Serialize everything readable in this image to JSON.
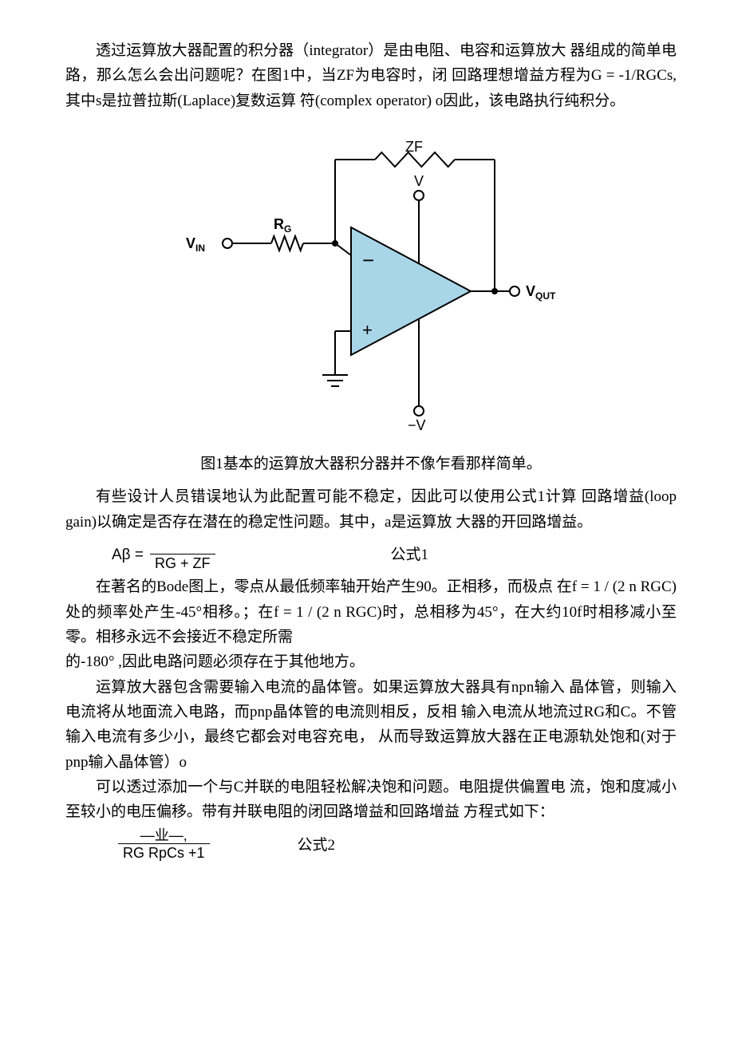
{
  "paragraphs": {
    "p1": "透过运算放大器配置的积分器（integrator）是由电阻、电容和运算放大  器组成的简单电路，那么怎么会出问题呢？在图1中，当ZF为电容时，闭  回路理想增益方程为G = -1/RGCs,其中s是拉普拉斯(Laplace)复数运算  符(complex operator) o因此，该电路执行纯积分。",
    "caption1": "图1基本的运算放大器积分器并不像乍看那样简单。",
    "p2": "有些设计人员错误地认为此配置可能不稳定，因此可以使用公式1计算  回路增益(loop gain)以确定是否存在潜在的稳定性问题。其中，a是运算放  大器的开回路增益。",
    "p3": "在著名的Bode图上，零点从最低频率轴开始产生90。正相移，而极点  在f = 1 / (2 n RGC)处的频率处产生-45°相移。；在f = 1 / (2 n RGC)时，总相移为45°，在大约10f时相移减小至零。相移永远不会接近不稳定所需",
    "p3b": "的-180° ,因此电路问题必须存在于其他地方。",
    "p4": "运算放大器包含需要输入电流的晶体管。如果运算放大器具有npn输入  晶体管，则输入电流将从地面流入电路，而pnp晶体管的电流则相反，反相  输入电流从地流过RG和C。不管输入电流有多少小，最终它都会对电容充电，  从而导致运算放大器在正电源轨处饱和(对于pnp输入晶体管）o",
    "p5": "可以透过添加一个与C并联的电阻轻松解决饱和问题。电阻提供偏置电  流，饱和度减小至较小的电压偏移。带有并联电阻的闭回路增益和回路增益  方程式如下："
  },
  "formula1": {
    "lhs": "Aβ =",
    "den": "RG + ZF",
    "label": "公式1"
  },
  "formula2": {
    "num": "—业—,",
    "den": "RG RpCs +1",
    "label": "公式2"
  },
  "diagram": {
    "labels": {
      "zf": "ZF",
      "rg": "RG",
      "vin": "VIN",
      "v": "V",
      "minusv": "−V",
      "vout": "VQUT",
      "plus": "+",
      "minus": "−"
    },
    "colors": {
      "wire": "#000000",
      "fill": "#a9d5e8",
      "fill_dark": "#7fb8d0",
      "text": "#000000",
      "bg": "#ffffff"
    },
    "stroke_width": 2
  }
}
